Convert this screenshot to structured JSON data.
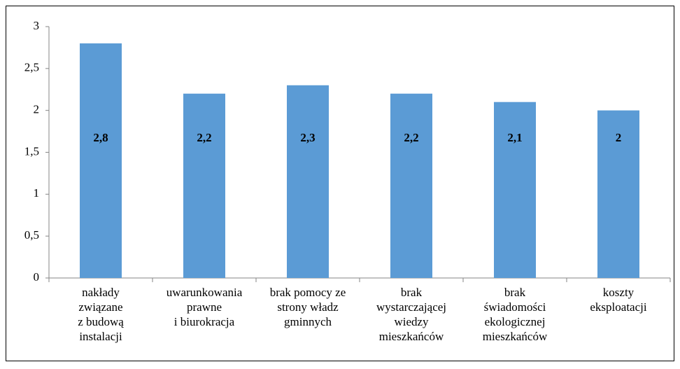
{
  "chart_data": {
    "type": "bar",
    "categories": [
      "nakłady\nzwiązane\nz budową\ninstalacji",
      "uwarunkowania\nprawne\ni biurokracja",
      "brak pomocy ze\nstrony władz\ngminnych",
      "brak\nwystarczającej\nwiedzy\nmieszkańców",
      "brak\nświadomości\nekologicznej\nmieszkańców",
      "koszty\neksploatacji"
    ],
    "values": [
      2.8,
      2.2,
      2.3,
      2.2,
      2.1,
      2
    ],
    "value_labels": [
      "2,8",
      "2,2",
      "2,3",
      "2,2",
      "2,1",
      "2"
    ],
    "color": "#5b9bd5",
    "ylim": [
      0,
      3
    ],
    "yticks": [
      0,
      {
        "value": 0.5,
        "label": "0,5"
      },
      1,
      {
        "value": 1.5,
        "label": "1,5"
      },
      2,
      {
        "value": 2.5,
        "label": "2,5"
      },
      3
    ],
    "grid": false
  }
}
